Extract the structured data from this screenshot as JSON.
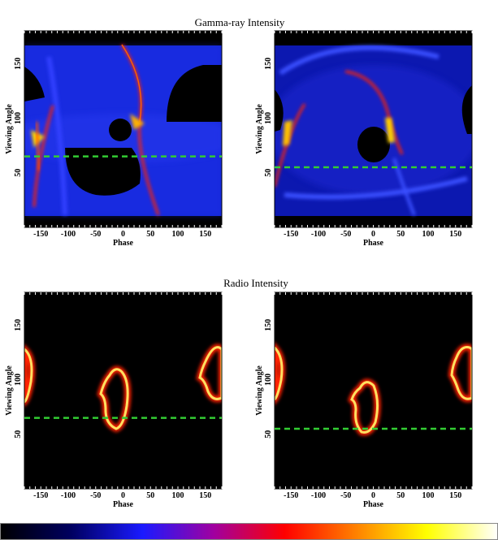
{
  "sections": {
    "gamma": {
      "title": "Gamma-ray   Intensity"
    },
    "radio": {
      "title": "Radio   Intensity"
    }
  },
  "colorbar": {
    "colors": [
      "#000000",
      "#000060",
      "#1a1aff",
      "#a000a0",
      "#ff0000",
      "#ff8000",
      "#ffff00",
      "#ffffff"
    ]
  },
  "chart_data": [
    {
      "type": "heatmap",
      "section": "gamma",
      "panel": "left",
      "xlabel": "Phase",
      "ylabel": "Viewing Angle",
      "xlim": [
        -180,
        180
      ],
      "ylim": [
        0,
        180
      ],
      "xticks": [
        -150,
        -100,
        -50,
        0,
        50,
        100,
        150
      ],
      "yticks": [
        50,
        100,
        150
      ],
      "reference_line": {
        "y": 65,
        "color": "#33cc33",
        "style": "dashed"
      }
    },
    {
      "type": "heatmap",
      "section": "gamma",
      "panel": "right",
      "xlabel": "Phase",
      "ylabel": "Viewing Angle",
      "xlim": [
        -180,
        180
      ],
      "ylim": [
        0,
        180
      ],
      "xticks": [
        -150,
        -100,
        -50,
        0,
        50,
        100,
        150
      ],
      "yticks": [
        50,
        100,
        150
      ],
      "reference_line": {
        "y": 55,
        "color": "#33cc33",
        "style": "dashed"
      }
    },
    {
      "type": "heatmap",
      "section": "radio",
      "panel": "left",
      "xlabel": "Phase",
      "ylabel": "Viewing Angle",
      "xlim": [
        -180,
        180
      ],
      "ylim": [
        0,
        180
      ],
      "xticks": [
        -150,
        -100,
        -50,
        0,
        50,
        100,
        150
      ],
      "yticks": [
        50,
        100,
        150
      ],
      "reference_line": {
        "y": 65,
        "color": "#33cc33",
        "style": "dashed"
      }
    },
    {
      "type": "heatmap",
      "section": "radio",
      "panel": "right",
      "xlabel": "Phase",
      "ylabel": "Viewing Angle",
      "xlim": [
        -180,
        180
      ],
      "ylim": [
        0,
        180
      ],
      "xticks": [
        -150,
        -100,
        -50,
        0,
        50,
        100,
        150
      ],
      "yticks": [
        50,
        100,
        150
      ],
      "reference_line": {
        "y": 55,
        "color": "#33cc33",
        "style": "dashed"
      }
    }
  ]
}
